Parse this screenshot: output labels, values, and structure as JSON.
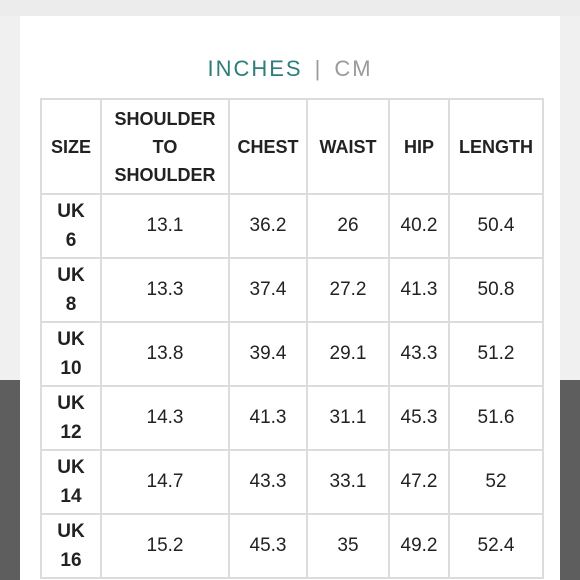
{
  "units": {
    "active": "INCHES",
    "separator": "|",
    "inactive": "CM"
  },
  "table": {
    "headers": {
      "size": "SIZE",
      "shoulder_line1": "SHOULDER",
      "shoulder_line2": "TO",
      "shoulder_line3": "SHOULDER",
      "chest": "CHEST",
      "waist": "WAIST",
      "hip": "HIP",
      "length": "LENGTH"
    },
    "rows": [
      {
        "size_prefix": "UK",
        "size_num": "6",
        "shoulder": "13.1",
        "chest": "36.2",
        "waist": "26",
        "hip": "40.2",
        "length": "50.4"
      },
      {
        "size_prefix": "UK",
        "size_num": "8",
        "shoulder": "13.3",
        "chest": "37.4",
        "waist": "27.2",
        "hip": "41.3",
        "length": "50.8"
      },
      {
        "size_prefix": "UK",
        "size_num": "10",
        "shoulder": "13.8",
        "chest": "39.4",
        "waist": "29.1",
        "hip": "43.3",
        "length": "51.2"
      },
      {
        "size_prefix": "UK",
        "size_num": "12",
        "shoulder": "14.3",
        "chest": "41.3",
        "waist": "31.1",
        "hip": "45.3",
        "length": "51.6"
      },
      {
        "size_prefix": "UK",
        "size_num": "14",
        "shoulder": "14.7",
        "chest": "43.3",
        "waist": "33.1",
        "hip": "47.2",
        "length": "52"
      },
      {
        "size_prefix": "UK",
        "size_num": "16",
        "shoulder": "15.2",
        "chest": "45.3",
        "waist": "35",
        "hip": "49.2",
        "length": "52.4"
      }
    ]
  },
  "colors": {
    "active_unit": "#2e7d7a",
    "inactive_unit": "#9a9a9a",
    "border": "#dcdcdc"
  }
}
